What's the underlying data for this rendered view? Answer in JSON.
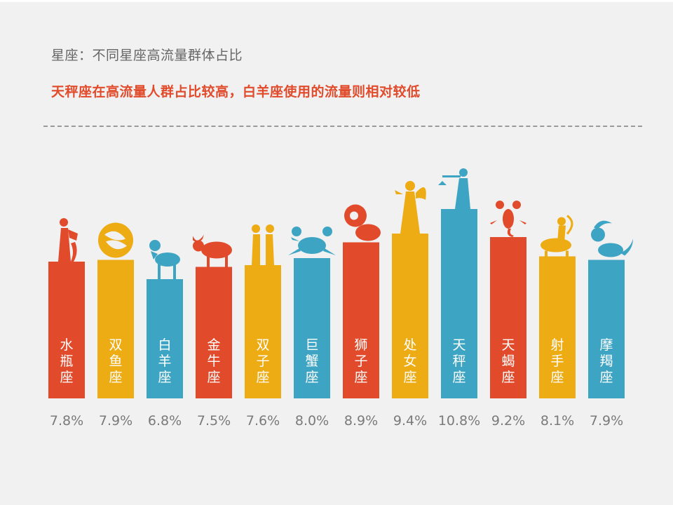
{
  "title": "星座：不同星座高流量群体占比",
  "subtitle": "天秤座在高流量人群占比较高，白羊座使用的流量则相对较低",
  "colors": {
    "red": "#e14a2a",
    "yellow": "#edab14",
    "blue": "#3ea4c4",
    "subtitle": "#e14a2a",
    "divider": "#9a9a9a"
  },
  "chart_data": {
    "type": "bar",
    "title": "星座：不同星座高流量群体占比",
    "subtitle": "天秤座在高流量人群占比较高，白羊座使用的流量则相对较低",
    "categories": [
      "水瓶座",
      "双鱼座",
      "白羊座",
      "金牛座",
      "双子座",
      "巨蟹座",
      "狮子座",
      "处女座",
      "天秤座",
      "天蝎座",
      "射手座",
      "摩羯座"
    ],
    "values": [
      7.8,
      7.9,
      6.8,
      7.5,
      7.6,
      8.0,
      8.9,
      9.4,
      10.8,
      9.2,
      8.1,
      7.9
    ],
    "value_labels": [
      "7.8%",
      "7.9%",
      "6.8%",
      "7.5%",
      "7.6%",
      "8.0%",
      "8.9%",
      "9.4%",
      "10.8%",
      "9.2%",
      "8.1%",
      "7.9%"
    ],
    "bar_colors": [
      "#e14a2a",
      "#edab14",
      "#3ea4c4",
      "#e14a2a",
      "#edab14",
      "#3ea4c4",
      "#e14a2a",
      "#edab14",
      "#3ea4c4",
      "#e14a2a",
      "#edab14",
      "#3ea4c4"
    ],
    "icons": [
      "aquarius-icon",
      "pisces-icon",
      "aries-icon",
      "taurus-icon",
      "gemini-icon",
      "cancer-icon",
      "leo-icon",
      "virgo-icon",
      "libra-icon",
      "scorpio-icon",
      "sagittarius-icon",
      "capricorn-icon"
    ],
    "ylim": [
      0,
      10.8
    ],
    "grid": false,
    "legend": "none",
    "xlabel": "",
    "ylabel": ""
  }
}
